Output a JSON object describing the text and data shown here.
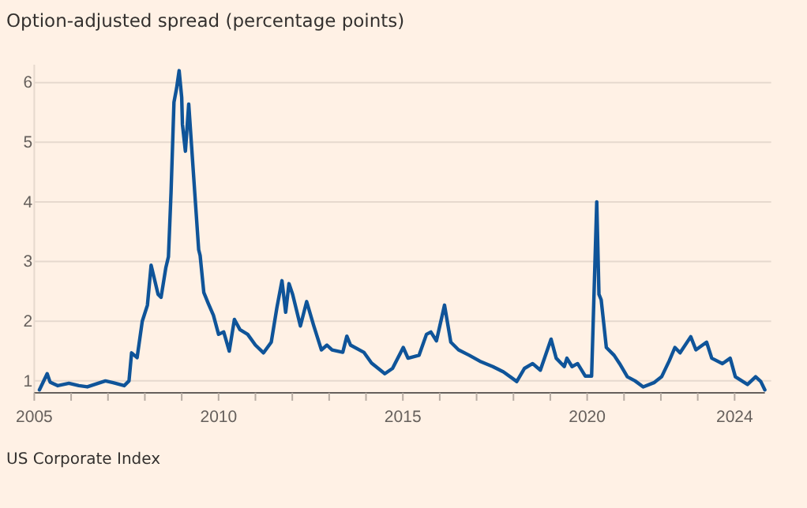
{
  "chart_data": {
    "type": "line",
    "title": "Option-adjusted spread (percentage points)",
    "annotations": [
      "US Corporate Index"
    ],
    "xlim": [
      2005,
      2024.82
    ],
    "ylim": [
      0.8,
      6.3
    ],
    "xticks": [
      2005,
      {
        "value": 2006,
        "label": null
      },
      {
        "value": 2007,
        "label": null
      },
      {
        "value": 2008,
        "label": null
      },
      {
        "value": 2009,
        "label": null
      },
      2010,
      {
        "value": 2011,
        "label": null
      },
      {
        "value": 2012,
        "label": null
      },
      {
        "value": 2013,
        "label": null
      },
      {
        "value": 2014,
        "label": null
      },
      2015,
      {
        "value": 2016,
        "label": null
      },
      {
        "value": 2017,
        "label": null
      },
      {
        "value": 2018,
        "label": null
      },
      {
        "value": 2019,
        "label": null
      },
      2020,
      {
        "value": 2021,
        "label": null
      },
      {
        "value": 2022,
        "label": null
      },
      {
        "value": 2023,
        "label": null
      },
      2024
    ],
    "yticks": [
      1,
      2,
      3,
      4,
      5,
      6
    ],
    "grid": "y",
    "line_style": "solid",
    "series": [
      {
        "color": "#0f5499",
        "x": [
          2005.14,
          2005.35,
          2005.43,
          2005.64,
          2005.94,
          2006.21,
          2006.44,
          2006.93,
          2007.14,
          2007.44,
          2007.57,
          2007.64,
          2007.79,
          2007.93,
          2008.07,
          2008.17,
          2008.36,
          2008.44,
          2008.57,
          2008.64,
          2008.71,
          2008.79,
          2008.86,
          2008.93,
          2009.0,
          2009.02,
          2009.1,
          2009.19,
          2009.36,
          2009.46,
          2009.5,
          2009.6,
          2009.72,
          2009.86,
          2010.0,
          2010.14,
          2010.29,
          2010.43,
          2010.58,
          2010.79,
          2011.0,
          2011.22,
          2011.43,
          2011.58,
          2011.72,
          2011.82,
          2011.91,
          2012.01,
          2012.22,
          2012.39,
          2012.58,
          2012.79,
          2012.94,
          2013.08,
          2013.37,
          2013.48,
          2013.58,
          2013.94,
          2014.15,
          2014.51,
          2014.72,
          2015.01,
          2015.14,
          2015.44,
          2015.64,
          2015.76,
          2015.91,
          2016.13,
          2016.3,
          2016.51,
          2016.8,
          2017.09,
          2017.44,
          2017.73,
          2018.09,
          2018.3,
          2018.52,
          2018.73,
          2019.02,
          2019.16,
          2019.38,
          2019.45,
          2019.59,
          2019.74,
          2019.95,
          2020.12,
          2020.26,
          2020.32,
          2020.38,
          2020.52,
          2020.73,
          2020.88,
          2021.09,
          2021.3,
          2021.52,
          2021.81,
          2022.02,
          2022.23,
          2022.38,
          2022.52,
          2022.81,
          2022.95,
          2023.24,
          2023.38,
          2023.67,
          2023.88,
          2024.02,
          2024.35,
          2024.57,
          2024.71,
          2024.82
        ],
        "values": [
          0.85,
          1.12,
          0.98,
          0.92,
          0.96,
          0.92,
          0.9,
          1.0,
          0.97,
          0.92,
          1.0,
          1.47,
          1.39,
          2.0,
          2.27,
          2.94,
          2.45,
          2.4,
          2.9,
          3.08,
          4.15,
          5.67,
          5.9,
          6.2,
          5.75,
          5.3,
          4.85,
          5.64,
          4.1,
          3.2,
          3.1,
          2.48,
          2.3,
          2.1,
          1.78,
          1.82,
          1.5,
          2.03,
          1.86,
          1.78,
          1.6,
          1.47,
          1.65,
          2.22,
          2.68,
          2.15,
          2.63,
          2.45,
          1.92,
          2.33,
          1.93,
          1.52,
          1.6,
          1.52,
          1.48,
          1.75,
          1.6,
          1.48,
          1.3,
          1.12,
          1.21,
          1.56,
          1.38,
          1.43,
          1.78,
          1.82,
          1.67,
          2.27,
          1.65,
          1.52,
          1.43,
          1.33,
          1.24,
          1.15,
          0.99,
          1.21,
          1.29,
          1.18,
          1.7,
          1.38,
          1.24,
          1.38,
          1.24,
          1.29,
          1.08,
          1.08,
          4.0,
          2.45,
          2.36,
          1.56,
          1.43,
          1.29,
          1.07,
          1.0,
          0.9,
          0.97,
          1.07,
          1.34,
          1.56,
          1.47,
          1.74,
          1.52,
          1.65,
          1.38,
          1.29,
          1.38,
          1.07,
          0.94,
          1.07,
          0.99,
          0.85
        ]
      }
    ]
  }
}
